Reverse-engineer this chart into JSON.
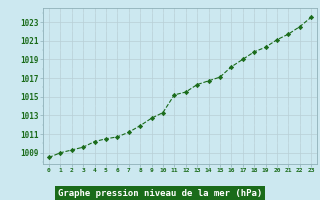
{
  "x": [
    0,
    1,
    2,
    3,
    4,
    5,
    6,
    7,
    8,
    9,
    10,
    11,
    12,
    13,
    14,
    15,
    16,
    17,
    18,
    19,
    20,
    21,
    22,
    23
  ],
  "y": [
    1008.5,
    1009.0,
    1009.3,
    1009.6,
    1010.2,
    1010.5,
    1010.7,
    1011.2,
    1011.9,
    1012.7,
    1013.3,
    1015.2,
    1015.5,
    1016.3,
    1016.7,
    1017.1,
    1018.2,
    1019.0,
    1019.8,
    1020.3,
    1021.1,
    1021.7,
    1022.5,
    1023.5
  ],
  "line_color": "#1a6b1a",
  "marker": "D",
  "marker_size": 2.2,
  "bg_color": "#cce8f0",
  "grid_color_major": "#b0c8d0",
  "grid_color_minor": "#daeef5",
  "xlabel": "Graphe pression niveau de la mer (hPa)",
  "tick_color": "#1a6b1a",
  "ytick_min": 1009,
  "ytick_max": 1023,
  "ytick_step": 2,
  "ylim": [
    1007.8,
    1024.5
  ],
  "xlim": [
    -0.5,
    23.5
  ],
  "xlabel_facecolor": "#1a6b1a",
  "xlabel_textcolor": "#ffffff"
}
